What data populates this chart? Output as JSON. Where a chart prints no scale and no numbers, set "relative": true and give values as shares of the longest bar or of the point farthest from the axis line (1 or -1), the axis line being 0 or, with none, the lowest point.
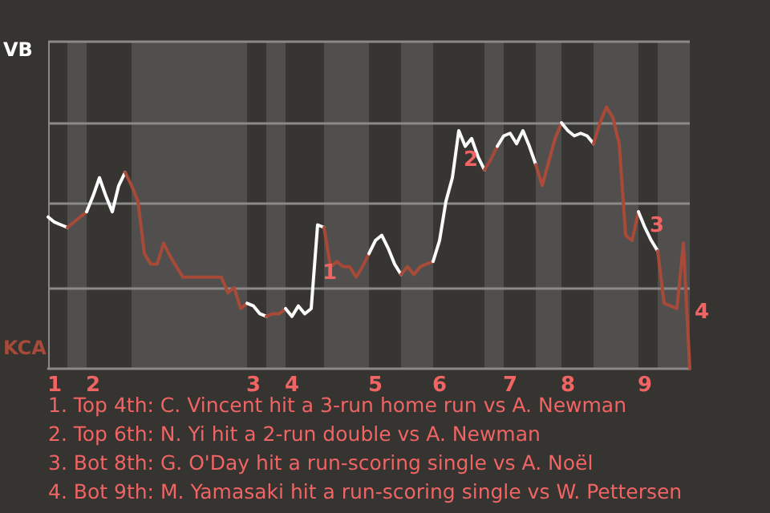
{
  "chart_data": {
    "type": "line",
    "relative": true,
    "categories": [
      null,
      "1",
      null,
      null,
      null,
      null,
      null,
      "2",
      null,
      null,
      null,
      null,
      null,
      null,
      null,
      null,
      null,
      null,
      null,
      null,
      null,
      null,
      null,
      null,
      null,
      null,
      null,
      null,
      null,
      null,
      null,
      null,
      "3",
      null,
      null,
      null,
      null,
      null,
      "4",
      null,
      null,
      null,
      null,
      null,
      null,
      null,
      null,
      null,
      null,
      null,
      null,
      "5",
      null,
      null,
      null,
      null,
      null,
      null,
      null,
      null,
      null,
      "6",
      null,
      null,
      null,
      null,
      null,
      null,
      null,
      null,
      null,
      null,
      "7",
      null,
      null,
      null,
      null,
      null,
      null,
      null,
      null,
      "8",
      null,
      null,
      null,
      null,
      null,
      null,
      null,
      null,
      null,
      null,
      null,
      "9",
      null,
      null,
      null,
      null,
      null,
      null,
      null
    ],
    "marker": "none",
    "line_style": "solid",
    "ref_lines": [
      {
        "axis": "y",
        "value": 0.3125,
        "color": "#8a8a8a"
      },
      {
        "axis": "y",
        "value": 0.625,
        "color": "#8a8a8a"
      },
      {
        "axis": "y",
        "value": 0.9375,
        "color": "#8a8a8a"
      },
      {
        "axis": "y",
        "value": 1.25,
        "color": "#8a8a8a"
      }
    ],
    "series": [
      {
        "color": "#ffffff",
        "values": [
          0.58,
          0.56,
          0.55,
          0.54,
          null,
          null,
          null,
          null,
          null,
          null,
          null,
          null,
          null,
          null,
          null,
          null,
          null,
          null,
          null,
          null,
          null,
          null,
          null,
          null,
          null,
          null,
          null,
          null,
          null,
          null,
          null,
          null,
          null,
          null,
          null,
          null,
          null,
          null,
          null,
          null,
          null,
          null,
          null,
          null,
          null,
          null,
          null,
          null,
          null,
          null,
          null,
          null,
          null,
          null,
          null,
          null,
          null,
          null,
          null,
          null,
          null,
          null,
          null,
          null,
          null,
          null,
          null,
          null,
          null,
          null,
          null,
          null,
          null,
          null,
          null,
          null,
          null,
          null,
          null,
          null,
          null,
          null,
          null,
          null,
          null,
          null,
          null,
          null,
          null,
          null,
          null,
          null,
          null,
          null,
          null,
          null,
          null,
          null,
          null,
          null,
          null
        ]
      },
      {
        "color": "#a84a38",
        "values": [
          null,
          null,
          null,
          0.54,
          0.56,
          0.58,
          0.6,
          null,
          null,
          null,
          null,
          null,
          null,
          null,
          null,
          null,
          null,
          null,
          null,
          null,
          null,
          null,
          null,
          null,
          null,
          null,
          null,
          null,
          null,
          null,
          null,
          null,
          null,
          null,
          null,
          null,
          null,
          null,
          null,
          null,
          null,
          null,
          null,
          null,
          null,
          null,
          null,
          null,
          null,
          null,
          null,
          null,
          null,
          null,
          null,
          null,
          null,
          null,
          null,
          null,
          null,
          null,
          null,
          null,
          null,
          null,
          null,
          null,
          null,
          null,
          null,
          null,
          null,
          null,
          null,
          null,
          null,
          null,
          null,
          null,
          null,
          null,
          null,
          null,
          null,
          null,
          null,
          null,
          null,
          null,
          null,
          null,
          null,
          null,
          null,
          null,
          null,
          null,
          null,
          null,
          null
        ]
      },
      {
        "color": "#fefefe",
        "values": [
          null,
          null,
          null,
          null,
          null,
          null,
          0.6,
          0.66,
          0.73,
          0.66,
          0.6,
          0.7,
          0.75,
          null,
          null,
          null,
          null,
          null,
          null,
          null,
          null,
          null,
          null,
          null,
          null,
          null,
          null,
          null,
          null,
          null,
          null,
          null,
          null,
          null,
          null,
          null,
          null,
          null,
          null,
          null,
          null,
          null,
          null,
          null,
          null,
          null,
          null,
          null,
          null,
          null,
          null,
          null,
          null,
          null,
          null,
          null,
          null,
          null,
          null,
          null,
          null,
          null,
          null,
          null,
          null,
          null,
          null,
          null,
          null,
          null,
          null,
          null,
          null,
          null,
          null,
          null,
          null,
          null,
          null,
          null,
          null,
          null,
          null,
          null,
          null,
          null,
          null,
          null,
          null,
          null,
          null,
          null,
          null,
          null,
          null,
          null,
          null,
          null,
          null,
          null,
          null
        ]
      },
      {
        "color": "#a74a38",
        "values": [
          null,
          null,
          null,
          null,
          null,
          null,
          null,
          null,
          null,
          null,
          null,
          null,
          0.75,
          0.7,
          0.64,
          0.44,
          0.4,
          0.4,
          0.48,
          0.43,
          0.39,
          0.35,
          0.35,
          0.35,
          0.35,
          0.35,
          0.35,
          0.35,
          0.29,
          0.31,
          0.23,
          0.25,
          null,
          null,
          null,
          null,
          null,
          null,
          null,
          null,
          null,
          null,
          null,
          null,
          null,
          null,
          null,
          null,
          null,
          null,
          null,
          null,
          null,
          null,
          null,
          null,
          null,
          null,
          null,
          null,
          null,
          null,
          null,
          null,
          null,
          null,
          null,
          null,
          null,
          null,
          null,
          null,
          null,
          null,
          null,
          null,
          null,
          null,
          null,
          null,
          null,
          null,
          null,
          null,
          null,
          null,
          null,
          null,
          null,
          null,
          null,
          null,
          null,
          null,
          null,
          null,
          null,
          null,
          null,
          null,
          null
        ]
      },
      {
        "color": "#fdfdfd",
        "values": [
          null,
          null,
          null,
          null,
          null,
          null,
          null,
          null,
          null,
          null,
          null,
          null,
          null,
          null,
          null,
          null,
          null,
          null,
          null,
          null,
          null,
          null,
          null,
          null,
          null,
          null,
          null,
          null,
          null,
          null,
          null,
          0.25,
          0.24,
          0.21,
          0.2,
          null,
          null,
          null,
          null,
          null,
          null,
          null,
          null,
          null,
          null,
          null,
          null,
          null,
          null,
          null,
          null,
          null,
          null,
          null,
          null,
          null,
          null,
          null,
          null,
          null,
          null,
          null,
          null,
          null,
          null,
          null,
          null,
          null,
          null,
          null,
          null,
          null,
          null,
          null,
          null,
          null,
          null,
          null,
          null,
          null,
          null,
          null,
          null,
          null,
          null,
          null,
          null,
          null,
          null,
          null,
          null,
          null,
          null,
          null,
          null,
          null,
          null,
          null,
          null,
          null,
          null
        ]
      },
      {
        "color": "#a94a38",
        "values": [
          null,
          null,
          null,
          null,
          null,
          null,
          null,
          null,
          null,
          null,
          null,
          null,
          null,
          null,
          null,
          null,
          null,
          null,
          null,
          null,
          null,
          null,
          null,
          null,
          null,
          null,
          null,
          null,
          null,
          null,
          null,
          null,
          null,
          null,
          0.2,
          0.21,
          0.21,
          0.23,
          null,
          null,
          null,
          null,
          null,
          null,
          null,
          null,
          null,
          null,
          null,
          null,
          null,
          null,
          null,
          null,
          null,
          null,
          null,
          null,
          null,
          null,
          null,
          null,
          null,
          null,
          null,
          null,
          null,
          null,
          null,
          null,
          null,
          null,
          null,
          null,
          null,
          null,
          null,
          null,
          null,
          null,
          null,
          null,
          null,
          null,
          null,
          null,
          null,
          null,
          null,
          null,
          null,
          null,
          null,
          null,
          null,
          null,
          null,
          null,
          null,
          null,
          null
        ]
      },
      {
        "name": "1",
        "color": "#fcfcfc",
        "values": [
          null,
          null,
          null,
          null,
          null,
          null,
          null,
          null,
          null,
          null,
          null,
          null,
          null,
          null,
          null,
          null,
          null,
          null,
          null,
          null,
          null,
          null,
          null,
          null,
          null,
          null,
          null,
          null,
          null,
          null,
          null,
          null,
          null,
          null,
          null,
          null,
          null,
          0.23,
          0.2,
          0.24,
          0.21,
          0.23,
          0.55,
          0.54,
          null,
          null,
          null,
          null,
          null,
          null,
          null,
          null,
          null,
          null,
          null,
          null,
          null,
          null,
          null,
          null,
          null,
          null,
          null,
          null,
          null,
          null,
          null,
          null,
          null,
          null,
          null,
          null,
          null,
          null,
          null,
          null,
          null,
          null,
          null,
          null,
          null,
          null,
          null,
          null,
          null,
          null,
          null,
          null,
          null,
          null,
          null,
          null,
          null,
          null,
          null,
          null,
          null,
          null,
          null,
          null,
          null
        ]
      },
      {
        "color": "#a84938",
        "values": [
          null,
          null,
          null,
          null,
          null,
          null,
          null,
          null,
          null,
          null,
          null,
          null,
          null,
          null,
          null,
          null,
          null,
          null,
          null,
          null,
          null,
          null,
          null,
          null,
          null,
          null,
          null,
          null,
          null,
          null,
          null,
          null,
          null,
          null,
          null,
          null,
          null,
          null,
          null,
          null,
          null,
          null,
          null,
          0.54,
          0.39,
          0.41,
          0.39,
          0.39,
          0.35,
          0.39,
          0.44,
          null,
          null,
          null,
          null,
          null,
          null,
          null,
          null,
          null,
          null,
          null,
          null,
          null,
          null,
          null,
          null,
          null,
          null,
          null,
          null,
          null,
          null,
          null,
          null,
          null,
          null,
          null,
          null,
          null,
          null,
          null,
          null,
          null,
          null,
          null,
          null,
          null,
          null,
          null,
          null,
          null,
          null,
          null,
          null,
          null,
          null,
          null,
          null,
          null,
          null
        ]
      },
      {
        "color": "#fbfbfb",
        "values": [
          null,
          null,
          null,
          null,
          null,
          null,
          null,
          null,
          null,
          null,
          null,
          null,
          null,
          null,
          null,
          null,
          null,
          null,
          null,
          null,
          null,
          null,
          null,
          null,
          null,
          null,
          null,
          null,
          null,
          null,
          null,
          null,
          null,
          null,
          null,
          null,
          null,
          null,
          null,
          null,
          null,
          null,
          null,
          null,
          null,
          null,
          null,
          null,
          null,
          null,
          0.44,
          0.49,
          0.51,
          0.46,
          0.4,
          0.36,
          null,
          null,
          null,
          null,
          null,
          null,
          null,
          null,
          null,
          null,
          null,
          null,
          null,
          null,
          null,
          null,
          null,
          null,
          null,
          null,
          null,
          null,
          null,
          null,
          null,
          null,
          null,
          null,
          null,
          null,
          null,
          null,
          null,
          null,
          null,
          null,
          null,
          null,
          null,
          null,
          null,
          null,
          null,
          null,
          null
        ]
      },
      {
        "color": "#a84b38",
        "values": [
          null,
          null,
          null,
          null,
          null,
          null,
          null,
          null,
          null,
          null,
          null,
          null,
          null,
          null,
          null,
          null,
          null,
          null,
          null,
          null,
          null,
          null,
          null,
          null,
          null,
          null,
          null,
          null,
          null,
          null,
          null,
          null,
          null,
          null,
          null,
          null,
          null,
          null,
          null,
          null,
          null,
          null,
          null,
          null,
          null,
          null,
          null,
          null,
          null,
          null,
          null,
          null,
          null,
          null,
          null,
          0.36,
          0.39,
          0.36,
          0.39,
          0.4,
          0.41,
          null,
          null,
          null,
          null,
          null,
          null,
          null,
          null,
          null,
          null,
          null,
          null,
          null,
          null,
          null,
          null,
          null,
          null,
          null,
          null,
          null,
          null,
          null,
          null,
          null,
          null,
          null,
          null,
          null,
          null,
          null,
          null,
          null,
          null,
          null,
          null,
          null,
          null,
          null,
          null
        ]
      },
      {
        "name": "2",
        "color": "#fafafa",
        "values": [
          null,
          null,
          null,
          null,
          null,
          null,
          null,
          null,
          null,
          null,
          null,
          null,
          null,
          null,
          null,
          null,
          null,
          null,
          null,
          null,
          null,
          null,
          null,
          null,
          null,
          null,
          null,
          null,
          null,
          null,
          null,
          null,
          null,
          null,
          null,
          null,
          null,
          null,
          null,
          null,
          null,
          null,
          null,
          null,
          null,
          null,
          null,
          null,
          null,
          null,
          null,
          null,
          null,
          null,
          null,
          null,
          null,
          null,
          null,
          null,
          0.41,
          0.49,
          0.64,
          0.73,
          0.91,
          0.85,
          0.88,
          0.81,
          0.76,
          null,
          null,
          null,
          null,
          null,
          null,
          null,
          null,
          null,
          null,
          null,
          null,
          null,
          null,
          null,
          null,
          null,
          null,
          null,
          null,
          null,
          null,
          null,
          null,
          null,
          null,
          null,
          null,
          null,
          null,
          null,
          null
        ]
      },
      {
        "color": "#a74938",
        "values": [
          null,
          null,
          null,
          null,
          null,
          null,
          null,
          null,
          null,
          null,
          null,
          null,
          null,
          null,
          null,
          null,
          null,
          null,
          null,
          null,
          null,
          null,
          null,
          null,
          null,
          null,
          null,
          null,
          null,
          null,
          null,
          null,
          null,
          null,
          null,
          null,
          null,
          null,
          null,
          null,
          null,
          null,
          null,
          null,
          null,
          null,
          null,
          null,
          null,
          null,
          null,
          null,
          null,
          null,
          null,
          null,
          null,
          null,
          null,
          null,
          null,
          null,
          null,
          null,
          null,
          null,
          null,
          null,
          0.76,
          0.8,
          0.85,
          null,
          null,
          null,
          null,
          null,
          null,
          null,
          null,
          null,
          null,
          null,
          null,
          null,
          null,
          null,
          null,
          null,
          null,
          null,
          null,
          null,
          null,
          null,
          null,
          null,
          null,
          null,
          null,
          null,
          null
        ]
      },
      {
        "color": "#f9f9f9",
        "values": [
          null,
          null,
          null,
          null,
          null,
          null,
          null,
          null,
          null,
          null,
          null,
          null,
          null,
          null,
          null,
          null,
          null,
          null,
          null,
          null,
          null,
          null,
          null,
          null,
          null,
          null,
          null,
          null,
          null,
          null,
          null,
          null,
          null,
          null,
          null,
          null,
          null,
          null,
          null,
          null,
          null,
          null,
          null,
          null,
          null,
          null,
          null,
          null,
          null,
          null,
          null,
          null,
          null,
          null,
          null,
          null,
          null,
          null,
          null,
          null,
          null,
          null,
          null,
          null,
          null,
          null,
          null,
          null,
          null,
          null,
          0.85,
          0.89,
          0.9,
          0.86,
          0.91,
          0.85,
          0.78,
          null,
          null,
          null,
          null,
          null,
          null,
          null,
          null,
          null,
          null,
          null,
          null,
          null,
          null,
          null,
          null,
          null,
          null,
          null,
          null,
          null,
          null,
          null,
          null
        ]
      },
      {
        "color": "#a94b38",
        "values": [
          null,
          null,
          null,
          null,
          null,
          null,
          null,
          null,
          null,
          null,
          null,
          null,
          null,
          null,
          null,
          null,
          null,
          null,
          null,
          null,
          null,
          null,
          null,
          null,
          null,
          null,
          null,
          null,
          null,
          null,
          null,
          null,
          null,
          null,
          null,
          null,
          null,
          null,
          null,
          null,
          null,
          null,
          null,
          null,
          null,
          null,
          null,
          null,
          null,
          null,
          null,
          null,
          null,
          null,
          null,
          null,
          null,
          null,
          null,
          null,
          null,
          null,
          null,
          null,
          null,
          null,
          null,
          null,
          null,
          null,
          null,
          null,
          null,
          null,
          null,
          null,
          0.78,
          0.7,
          0.79,
          0.88,
          0.94,
          null,
          null,
          null,
          null,
          null,
          null,
          null,
          null,
          null,
          null,
          null,
          null,
          null,
          null,
          null,
          null,
          null,
          null,
          null,
          null
        ]
      },
      {
        "color": "#f8f8f8",
        "values": [
          null,
          null,
          null,
          null,
          null,
          null,
          null,
          null,
          null,
          null,
          null,
          null,
          null,
          null,
          null,
          null,
          null,
          null,
          null,
          null,
          null,
          null,
          null,
          null,
          null,
          null,
          null,
          null,
          null,
          null,
          null,
          null,
          null,
          null,
          null,
          null,
          null,
          null,
          null,
          null,
          null,
          null,
          null,
          null,
          null,
          null,
          null,
          null,
          null,
          null,
          null,
          null,
          null,
          null,
          null,
          null,
          null,
          null,
          null,
          null,
          null,
          null,
          null,
          null,
          null,
          null,
          null,
          null,
          null,
          null,
          null,
          null,
          null,
          null,
          null,
          null,
          null,
          null,
          null,
          null,
          0.94,
          0.91,
          0.89,
          0.9,
          0.89,
          0.86,
          null,
          null,
          null,
          null,
          null,
          null,
          null,
          null,
          null,
          null,
          null,
          null,
          null,
          null,
          null
        ]
      },
      {
        "color": "#a84a37",
        "values": [
          null,
          null,
          null,
          null,
          null,
          null,
          null,
          null,
          null,
          null,
          null,
          null,
          null,
          null,
          null,
          null,
          null,
          null,
          null,
          null,
          null,
          null,
          null,
          null,
          null,
          null,
          null,
          null,
          null,
          null,
          null,
          null,
          null,
          null,
          null,
          null,
          null,
          null,
          null,
          null,
          null,
          null,
          null,
          null,
          null,
          null,
          null,
          null,
          null,
          null,
          null,
          null,
          null,
          null,
          null,
          null,
          null,
          null,
          null,
          null,
          null,
          null,
          null,
          null,
          null,
          null,
          null,
          null,
          null,
          null,
          null,
          null,
          null,
          null,
          null,
          null,
          null,
          null,
          null,
          null,
          null,
          null,
          null,
          null,
          null,
          0.86,
          0.94,
          1,
          0.96,
          0.86,
          0.51,
          0.49,
          0.6,
          null,
          null,
          null,
          null,
          null,
          null,
          null,
          null
        ]
      },
      {
        "name": "3",
        "color": "#f7f7f7",
        "values": [
          null,
          null,
          null,
          null,
          null,
          null,
          null,
          null,
          null,
          null,
          null,
          null,
          null,
          null,
          null,
          null,
          null,
          null,
          null,
          null,
          null,
          null,
          null,
          null,
          null,
          null,
          null,
          null,
          null,
          null,
          null,
          null,
          null,
          null,
          null,
          null,
          null,
          null,
          null,
          null,
          null,
          null,
          null,
          null,
          null,
          null,
          null,
          null,
          null,
          null,
          null,
          null,
          null,
          null,
          null,
          null,
          null,
          null,
          null,
          null,
          null,
          null,
          null,
          null,
          null,
          null,
          null,
          null,
          null,
          null,
          null,
          null,
          null,
          null,
          null,
          null,
          null,
          null,
          null,
          null,
          null,
          null,
          null,
          null,
          null,
          null,
          null,
          null,
          null,
          null,
          null,
          null,
          0.6,
          0.54,
          0.49,
          0.45,
          null,
          null,
          null,
          null,
          null
        ]
      },
      {
        "name": "4",
        "color": "#a84a39",
        "values": [
          null,
          null,
          null,
          null,
          null,
          null,
          null,
          null,
          null,
          null,
          null,
          null,
          null,
          null,
          null,
          null,
          null,
          null,
          null,
          null,
          null,
          null,
          null,
          null,
          null,
          null,
          null,
          null,
          null,
          null,
          null,
          null,
          null,
          null,
          null,
          null,
          null,
          null,
          null,
          null,
          null,
          null,
          null,
          null,
          null,
          null,
          null,
          null,
          null,
          null,
          null,
          null,
          null,
          null,
          null,
          null,
          null,
          null,
          null,
          null,
          null,
          null,
          null,
          null,
          null,
          null,
          null,
          null,
          null,
          null,
          null,
          null,
          null,
          null,
          null,
          null,
          null,
          null,
          null,
          null,
          null,
          null,
          null,
          null,
          null,
          null,
          null,
          null,
          null,
          null,
          null,
          null,
          null,
          null,
          null,
          0.45,
          0.25,
          0.24,
          0.23,
          0.48,
          0
        ]
      }
    ],
    "annotations": [
      "VB",
      "KCA",
      "1. Top 4th: C. Vincent hit a 3-run home run vs A. Newman",
      "2. Top 6th: N. Yi hit a 2-run double vs A. Newman",
      "3. Bot 8th: G. O'Day hit a run-scoring single vs A. Noël",
      "4. Bot 9th: M. Yamasaki hit a run-scoring single vs W. Pettersen"
    ]
  }
}
